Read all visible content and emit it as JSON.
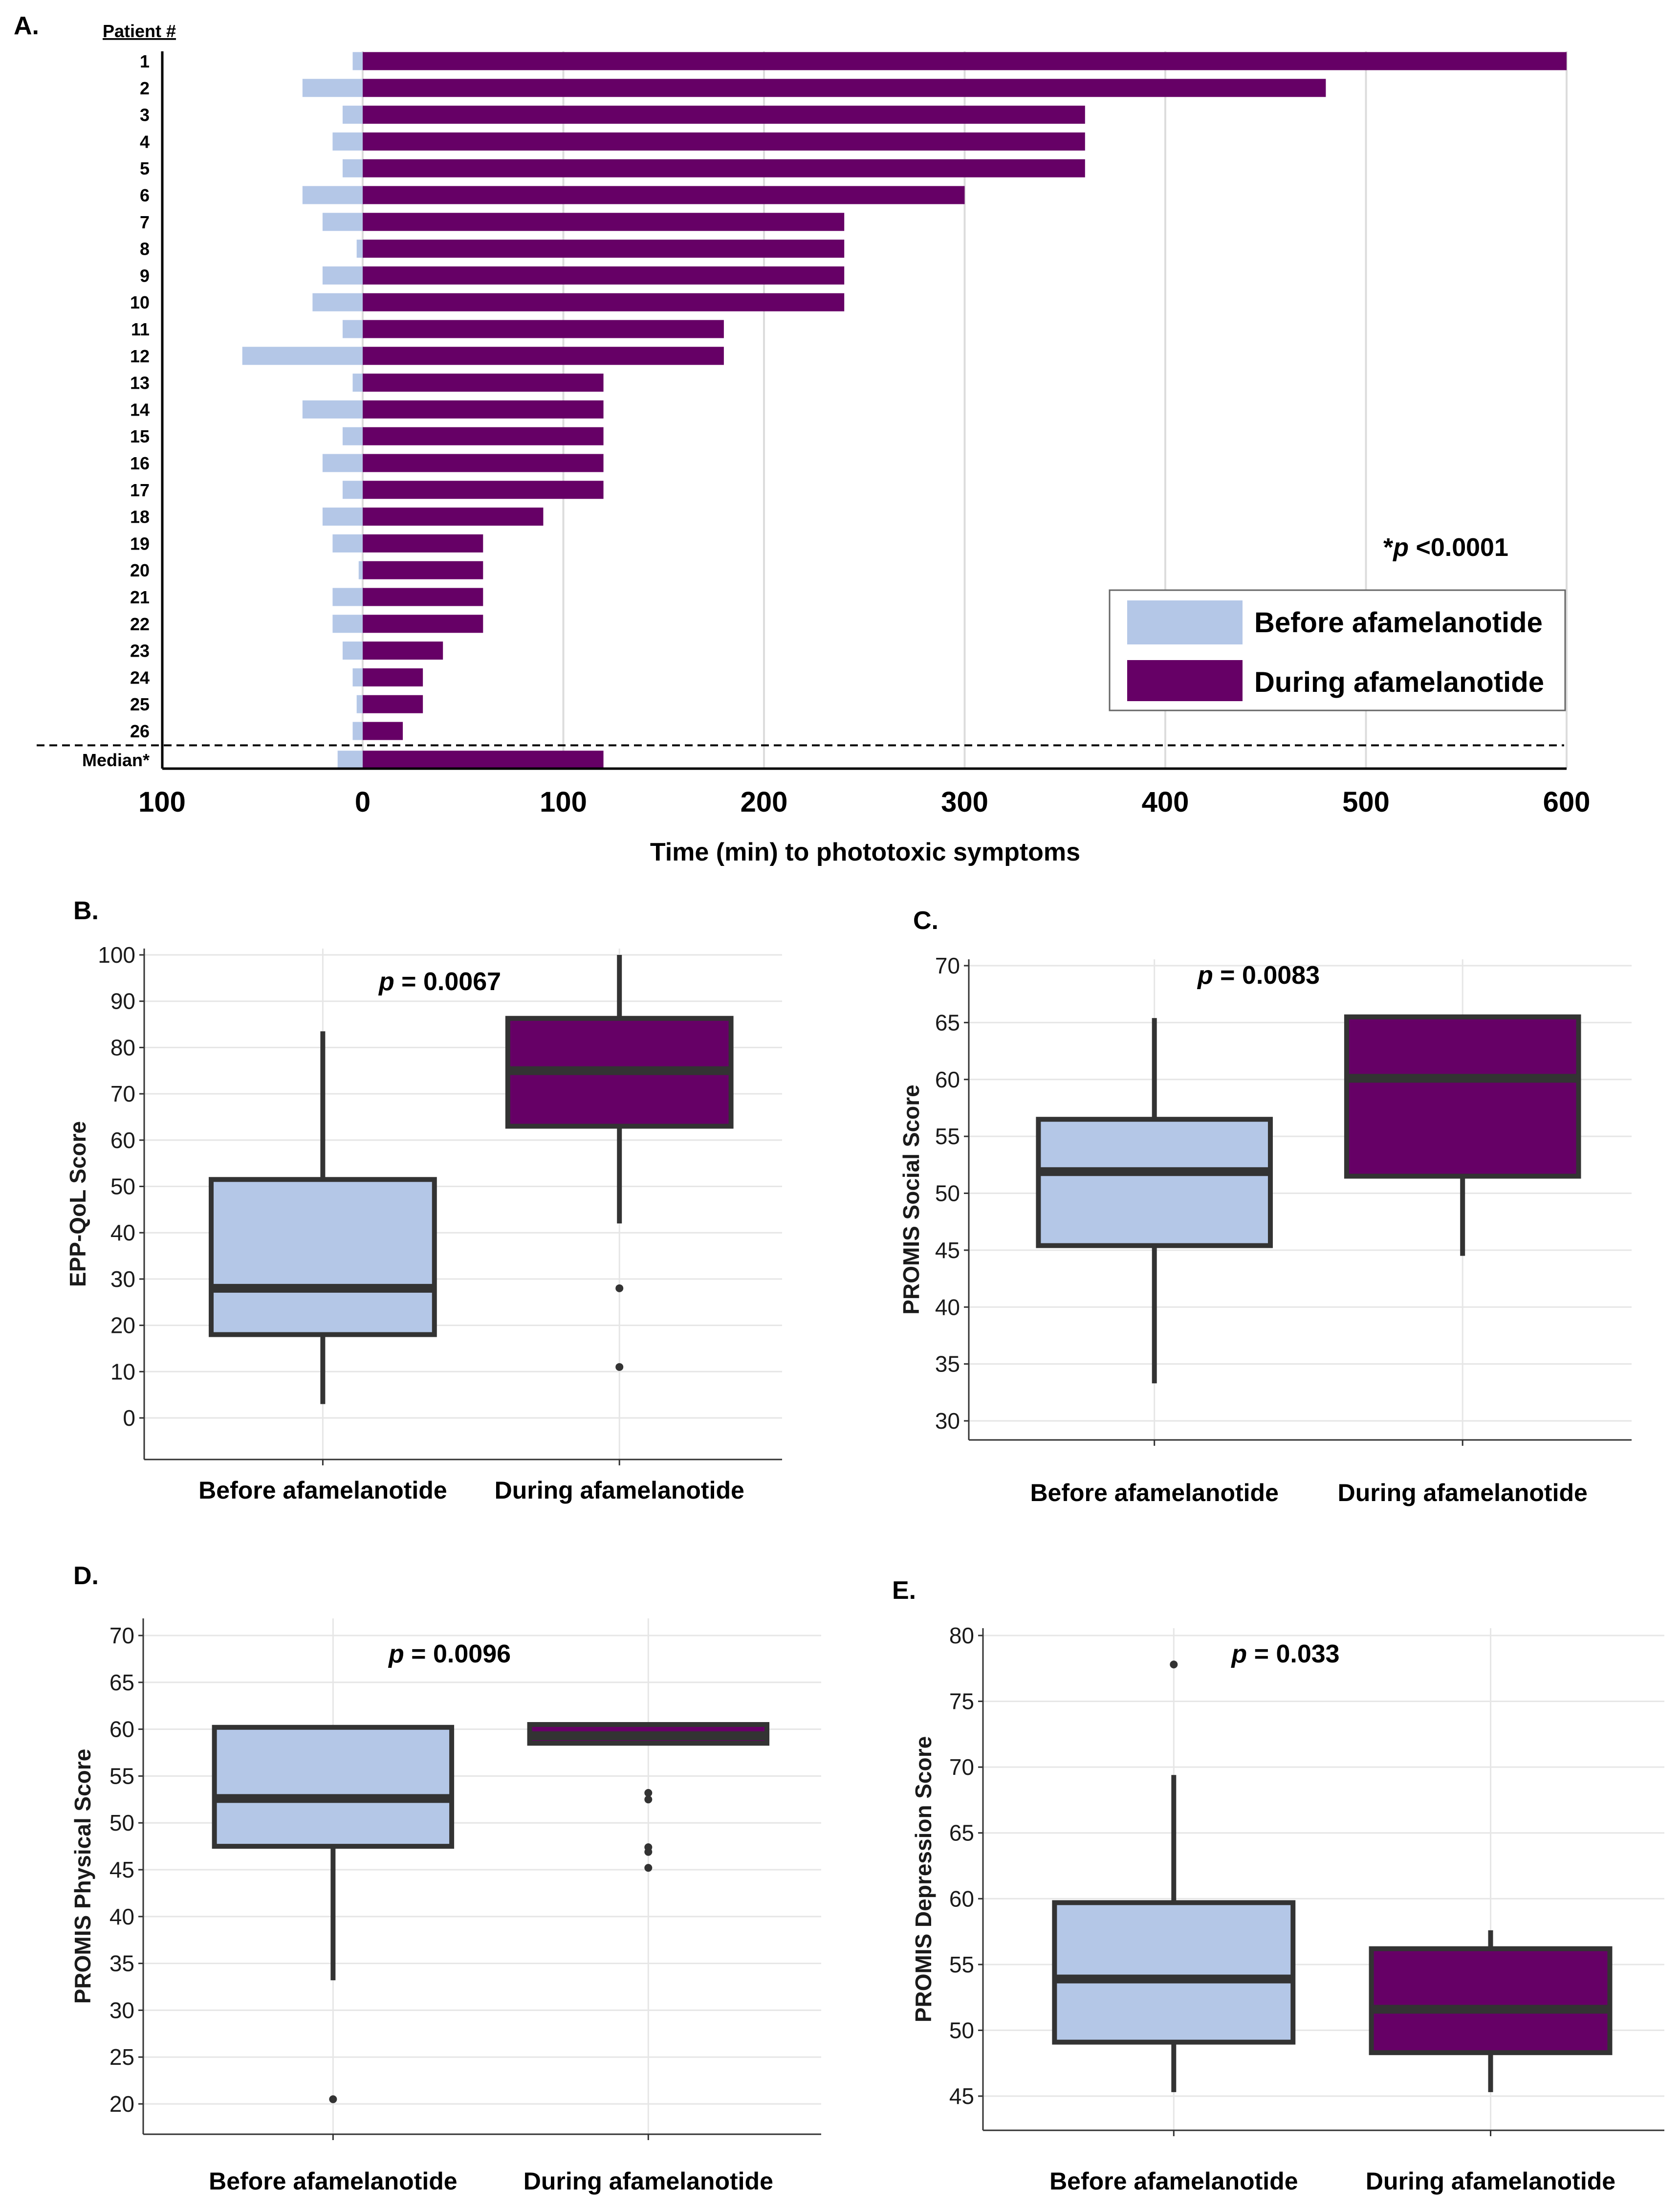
{
  "figure": {
    "colors": {
      "before": "#B4C7E7",
      "during": "#660066",
      "box_outline": "#333333",
      "outlier": "#333333"
    }
  },
  "chart_data": [
    {
      "id": "A",
      "panel_label": "A.",
      "type": "bar",
      "orientation": "horizontal",
      "diverging": true,
      "row_header": "Patient #",
      "categories": [
        "1",
        "2",
        "3",
        "4",
        "5",
        "6",
        "7",
        "8",
        "9",
        "10",
        "11",
        "12",
        "13",
        "14",
        "15",
        "16",
        "17",
        "18",
        "19",
        "20",
        "21",
        "22",
        "23",
        "24",
        "25",
        "26",
        "Median*"
      ],
      "series": [
        {
          "name": "Before afamelanotide",
          "direction": "left",
          "values": [
            5,
            30,
            10,
            15,
            10,
            30,
            20,
            3,
            20,
            25,
            10,
            60,
            5,
            30,
            10,
            20,
            10,
            20,
            15,
            2,
            15,
            15,
            10,
            5,
            3,
            5,
            12.5
          ]
        },
        {
          "name": "During afamelanotide",
          "direction": "right",
          "values": [
            600,
            480,
            360,
            360,
            360,
            300,
            240,
            240,
            240,
            240,
            180,
            180,
            120,
            120,
            120,
            120,
            120,
            90,
            60,
            60,
            60,
            60,
            40,
            30,
            30,
            20,
            120
          ]
        }
      ],
      "xlabel": "Time (min) to phototoxic symptoms",
      "xticks": [
        "100",
        "0",
        "100",
        "200",
        "300",
        "400",
        "500",
        "600"
      ],
      "xlim": [
        -100,
        600
      ],
      "grid": true,
      "annotation": {
        "prefix": "*",
        "italic": "p",
        "rest": " <0.0001"
      },
      "legend": {
        "position": "bottom-right",
        "entries": [
          "Before afamelanotide",
          "During afamelanotide"
        ]
      },
      "separator_before_row": "Median*"
    },
    {
      "id": "B",
      "panel_label": "B.",
      "type": "box",
      "ylabel": "EPP-QoL Score",
      "ylim": [
        -5,
        102
      ],
      "yticks": [
        0,
        10,
        20,
        30,
        40,
        50,
        60,
        70,
        80,
        90,
        100
      ],
      "categories": [
        "Before afamelanotide",
        "During afamelanotide"
      ],
      "boxes": [
        {
          "name": "Before afamelanotide",
          "whisker_low": 3,
          "q1": 18,
          "median": 28,
          "q3": 51.5,
          "whisker_high": 83.5,
          "outliers": []
        },
        {
          "name": "During afamelanotide",
          "whisker_low": 42,
          "q1": 63,
          "median": 75,
          "q3": 86.3,
          "whisker_high": 100,
          "outliers": [
            28,
            11
          ]
        }
      ],
      "annotation": {
        "italic": "p",
        "rest": " = 0.0067"
      },
      "grid": true
    },
    {
      "id": "C",
      "panel_label": "C.",
      "type": "box",
      "ylabel": "PROMIS Social Score",
      "ylim": [
        28,
        71.5
      ],
      "yticks": [
        30,
        35,
        40,
        45,
        50,
        55,
        60,
        65,
        70
      ],
      "categories": [
        "Before afamelanotide",
        "During afamelanotide"
      ],
      "boxes": [
        {
          "name": "Before afamelanotide",
          "whisker_low": 33.3,
          "q1": 45.4,
          "median": 51.9,
          "q3": 56.5,
          "whisker_high": 65.4,
          "outliers": []
        },
        {
          "name": "During afamelanotide",
          "whisker_low": 44.5,
          "q1": 51.5,
          "median": 60.1,
          "q3": 65.5,
          "whisker_high": 65.5,
          "outliers": []
        }
      ],
      "annotation": {
        "italic": "p",
        "rest": " = 0.0083"
      },
      "grid": true
    },
    {
      "id": "D",
      "panel_label": "D.",
      "type": "box",
      "ylabel": "PROMIS Physical Score",
      "ylim": [
        17.5,
        72
      ],
      "yticks": [
        20,
        25,
        30,
        35,
        40,
        45,
        50,
        55,
        60,
        65,
        70
      ],
      "categories": [
        "Before afamelanotide",
        "During afamelanotide"
      ],
      "boxes": [
        {
          "name": "Before afamelanotide",
          "whisker_low": 33.2,
          "q1": 47.5,
          "median": 52.6,
          "q3": 60.2,
          "whisker_high": 60.2,
          "outliers": [
            20.5
          ]
        },
        {
          "name": "During afamelanotide",
          "whisker_low": 58.5,
          "q1": 58.5,
          "median": 59.3,
          "q3": 60.5,
          "whisker_high": 60.5,
          "outliers": [
            53.2,
            52.5,
            47.4,
            46.9,
            45.2
          ]
        }
      ],
      "annotation": {
        "italic": "p",
        "rest": " = 0.0096"
      },
      "grid": true
    },
    {
      "id": "E",
      "panel_label": "E.",
      "type": "box",
      "ylabel": "PROMIS Depression Score",
      "ylim": [
        43.3,
        80.8
      ],
      "yticks": [
        45,
        50,
        55,
        60,
        65,
        70,
        75,
        80
      ],
      "categories": [
        "Before afamelanotide",
        "During afamelanotide"
      ],
      "boxes": [
        {
          "name": "Before afamelanotide",
          "whisker_low": 45.3,
          "q1": 49.1,
          "median": 53.9,
          "q3": 59.7,
          "whisker_high": 69.4,
          "outliers": [
            77.8
          ]
        },
        {
          "name": "During afamelanotide",
          "whisker_low": 45.3,
          "q1": 48.3,
          "median": 51.6,
          "q3": 56.2,
          "whisker_high": 57.6,
          "outliers": []
        }
      ],
      "annotation": {
        "italic": "p",
        "rest": " = 0.033"
      },
      "grid": true
    }
  ]
}
